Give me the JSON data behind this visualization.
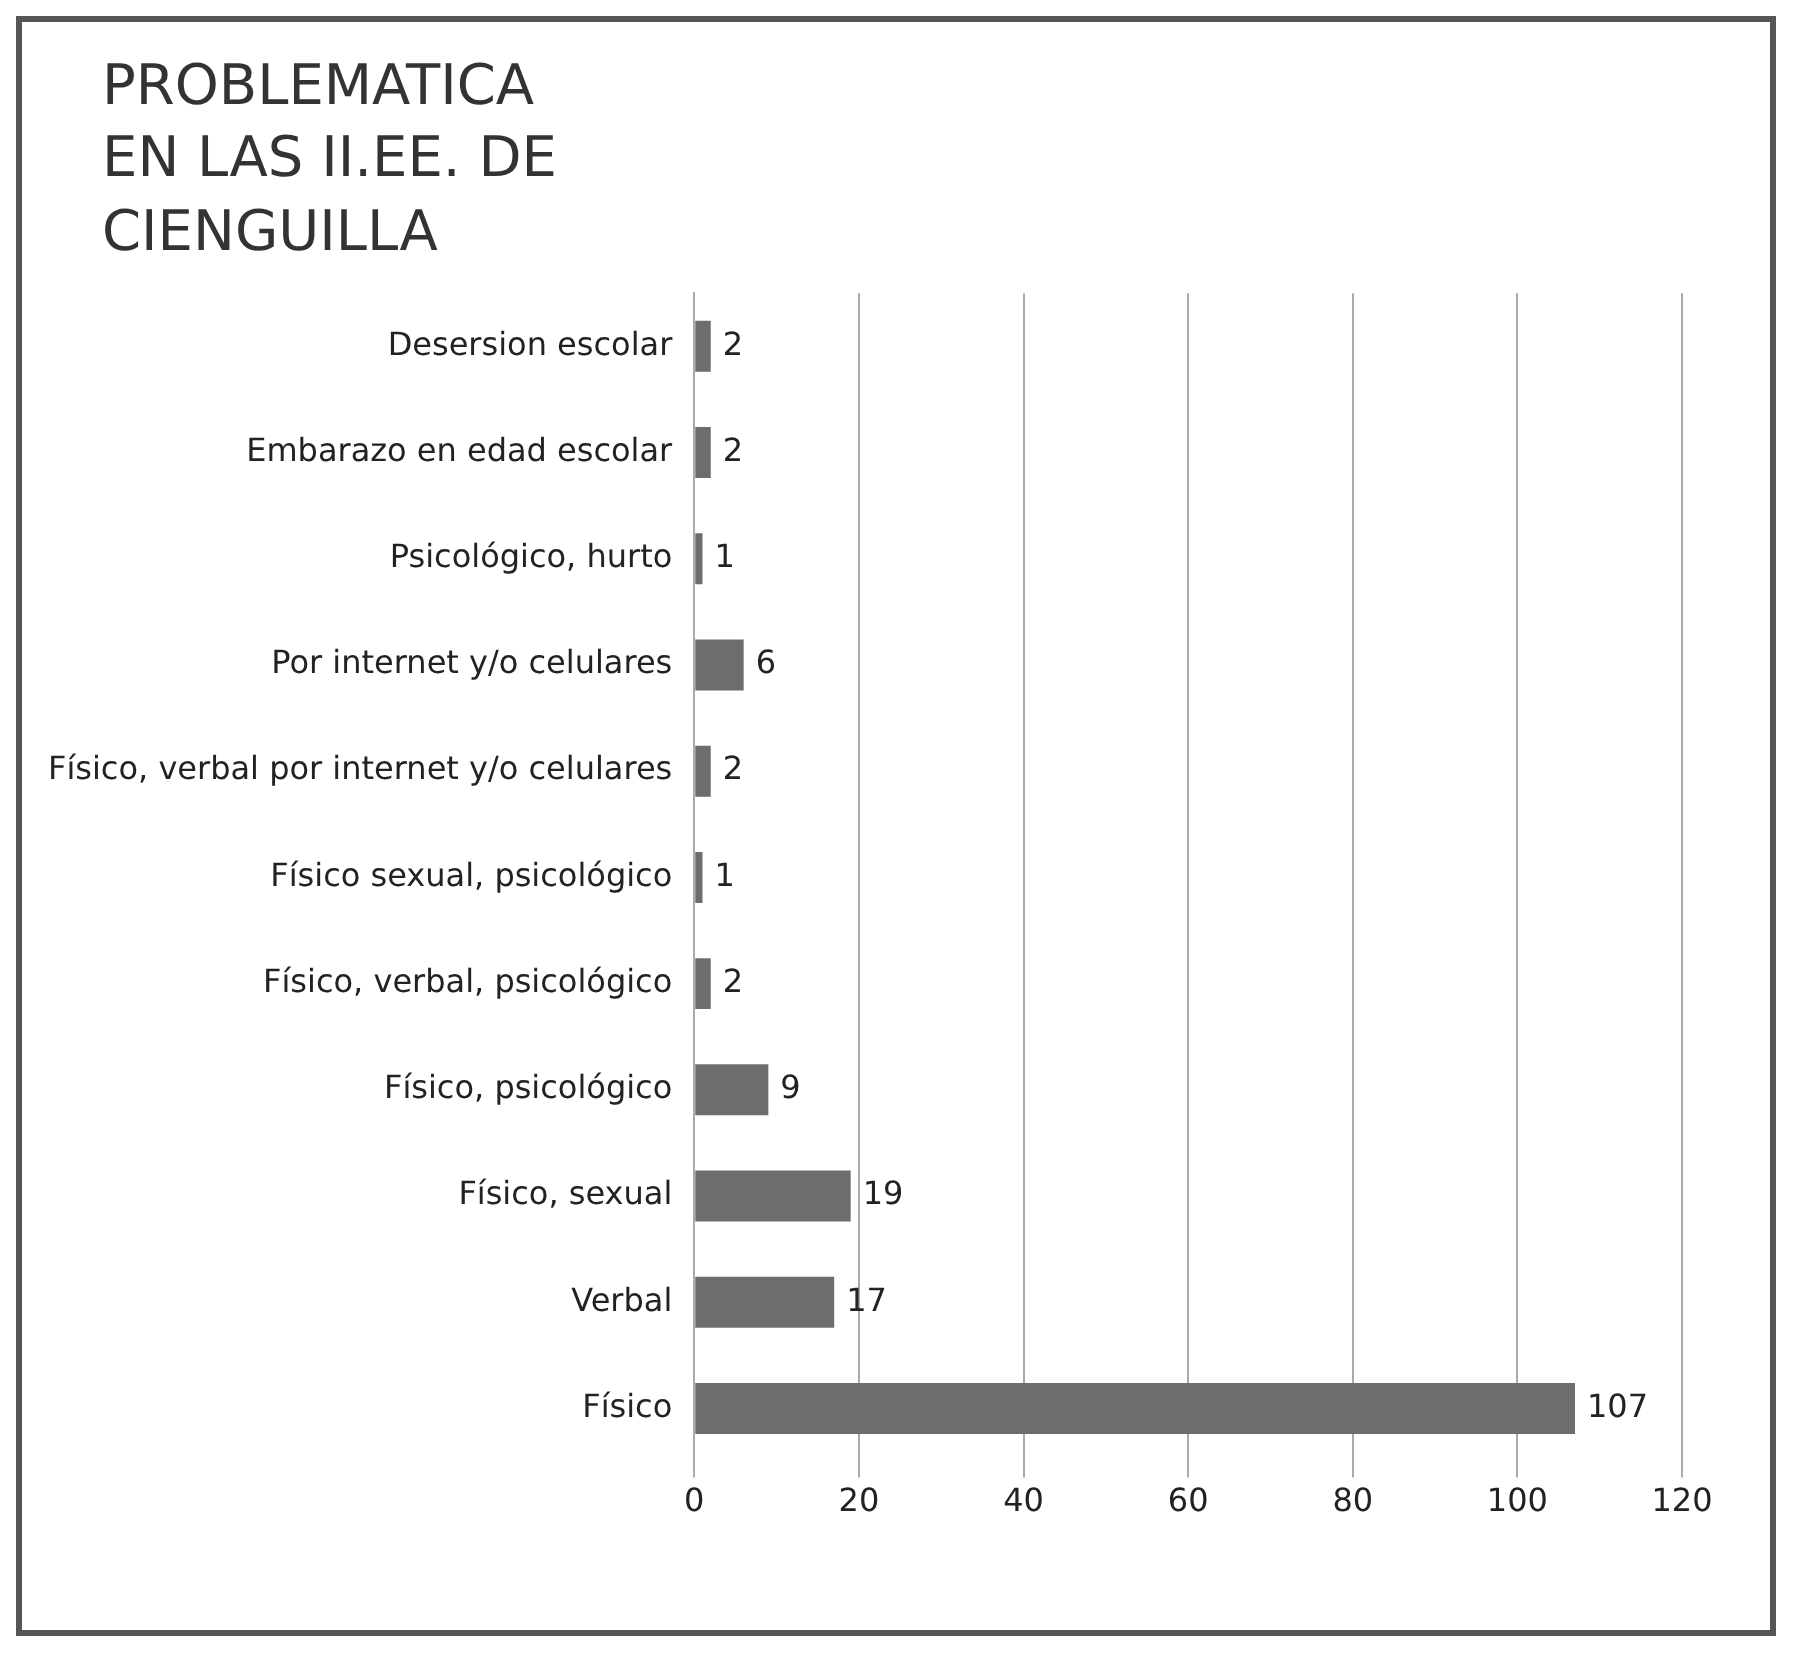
{
  "chart_data": {
    "type": "bar",
    "orientation": "horizontal",
    "title": "PROBLEMATICA EN LAS II.EE. DE CIENGUILLA",
    "categories": [
      "Desersion escolar",
      "Embarazo en edad escolar",
      "Psicológico, hurto",
      "Por internet y/o celulares",
      "Físico, verbal por internet y/o celulares",
      "Físico sexual, psicológico",
      "Físico, verbal, psicológico",
      "Físico, psicológico",
      "Físico, sexual",
      "Verbal",
      "Físico"
    ],
    "values": [
      2,
      2,
      1,
      6,
      2,
      1,
      2,
      9,
      19,
      17,
      107
    ],
    "color": "#6d6d6d",
    "xlim": [
      0,
      120
    ],
    "xticks": [
      0,
      20,
      40,
      60,
      80,
      100,
      120
    ],
    "grid": "x",
    "data_labels": true,
    "legend": false
  }
}
